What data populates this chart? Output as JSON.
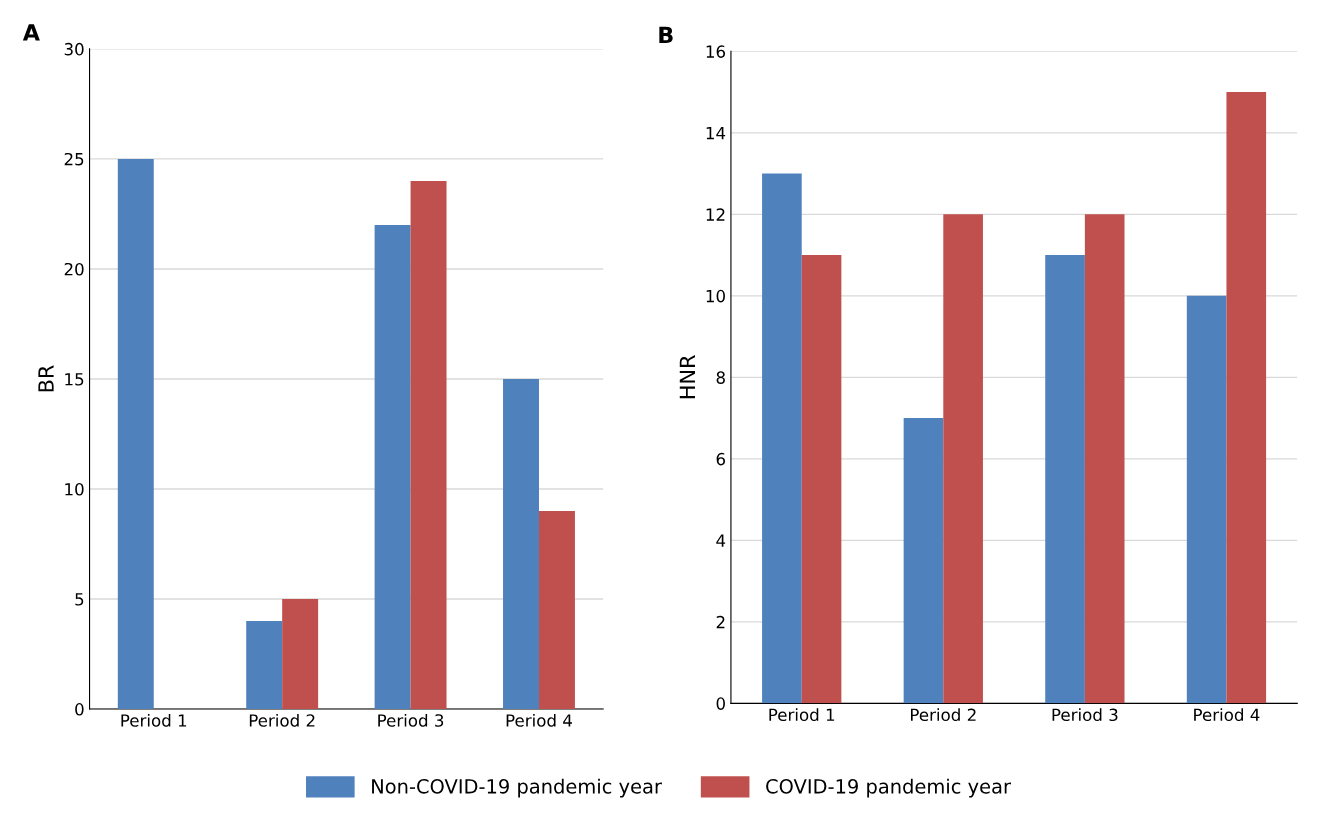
{
  "chart_data": [
    {
      "type": "bar",
      "title": "A",
      "ylabel": "BR",
      "categories": [
        "Period 1",
        "Period 2",
        "Period 3",
        "Period 4"
      ],
      "series": [
        {
          "name": "Non-COVID-19 pandemic year",
          "color": "#4f81bd",
          "values": [
            25,
            4,
            22,
            15
          ]
        },
        {
          "name": "COVID-19 pandemic year",
          "color": "#c0504d",
          "values": [
            0,
            5,
            24,
            9
          ]
        }
      ],
      "ylim": [
        0,
        30
      ],
      "yticks": [
        0,
        5,
        10,
        15,
        20,
        25,
        30
      ],
      "grid": "y",
      "legend": "bottom"
    },
    {
      "type": "bar",
      "title": "B",
      "ylabel": "HNR",
      "categories": [
        "Period 1",
        "Period 2",
        "Period 3",
        "Period 4"
      ],
      "series": [
        {
          "color": "#4f81bd",
          "values": [
            13,
            7,
            11,
            10
          ]
        },
        {
          "color": "#c0504d",
          "values": [
            11,
            12,
            12,
            15
          ]
        }
      ],
      "ylim": [
        0,
        16
      ],
      "yticks": [
        0,
        2,
        4,
        6,
        8,
        10,
        12,
        14,
        16
      ],
      "grid": "y"
    }
  ]
}
